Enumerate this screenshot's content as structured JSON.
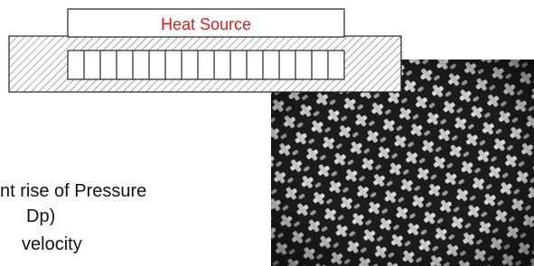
{
  "heat_source": {
    "label": "Heat Source"
  },
  "text_lines": [
    "nt rise of Pressure",
    "Dp)",
    "velocity"
  ]
}
